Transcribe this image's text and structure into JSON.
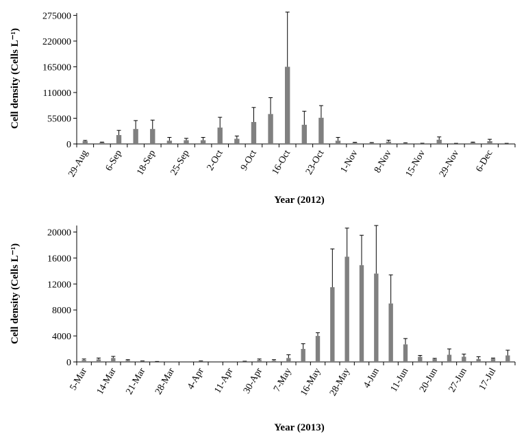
{
  "chart_data": [
    {
      "type": "bar",
      "ylabel": "Cell density (Cells L⁻¹)",
      "xlabel": "Year (2012)",
      "color": "#808080",
      "categories": [
        "29-Aug",
        null,
        "6-Sep",
        null,
        "18-Sep",
        null,
        "25-Sep",
        null,
        "2-Oct",
        null,
        "9-Oct",
        null,
        "16-Oct",
        null,
        "23-Oct",
        null,
        "1-Nov",
        null,
        "8-Nov",
        null,
        "15-Nov",
        null,
        "29-Nov",
        null,
        "6-Dec",
        null
      ],
      "values": [
        6000,
        3000,
        19000,
        32000,
        32000,
        7000,
        8000,
        8000,
        35000,
        11000,
        47000,
        64000,
        165000,
        41000,
        56000,
        7000,
        2500,
        2000,
        5000,
        1500,
        1000,
        9000,
        1000,
        3000,
        6000,
        1000
      ],
      "errors": [
        1500,
        1000,
        10000,
        18000,
        19000,
        7000,
        4000,
        6000,
        22000,
        6000,
        31000,
        35000,
        117000,
        29000,
        26000,
        7000,
        1000,
        1000,
        3000,
        1000,
        500,
        6000,
        300,
        1000,
        4000,
        300
      ],
      "ylim": [
        0,
        280000
      ],
      "yticks": [
        0,
        55000,
        110000,
        165000,
        220000,
        275000
      ]
    },
    {
      "type": "bar",
      "ylabel": "Cell density (Cells L⁻¹)",
      "xlabel": "Year (2013)",
      "color": "#808080",
      "categories": [
        "5-Mar",
        null,
        "14-Mar",
        null,
        "21-Mar",
        null,
        "28-Mar",
        null,
        "4-Apr",
        null,
        "11-Apr",
        null,
        "30-Apr",
        null,
        "7-May",
        null,
        "16-May",
        null,
        "28-May",
        null,
        "4-Jun",
        null,
        "11-Jun",
        null,
        "20-Jun",
        null,
        "27-Jun",
        null,
        "17-Jul",
        null
      ],
      "values": [
        300,
        400,
        600,
        250,
        100,
        50,
        0,
        0,
        100,
        0,
        0,
        80,
        300,
        200,
        600,
        2000,
        4000,
        11500,
        16200,
        14900,
        13600,
        9000,
        2700,
        800,
        450,
        1100,
        800,
        450,
        500,
        1000
      ],
      "errors": [
        150,
        200,
        250,
        100,
        50,
        20,
        0,
        0,
        50,
        0,
        0,
        30,
        150,
        150,
        500,
        800,
        500,
        5900,
        4400,
        4600,
        7400,
        4400,
        900,
        200,
        100,
        900,
        400,
        350,
        100,
        800
      ],
      "ylim": [
        0,
        21000
      ],
      "yticks": [
        0,
        4000,
        8000,
        12000,
        16000,
        20000
      ]
    }
  ]
}
